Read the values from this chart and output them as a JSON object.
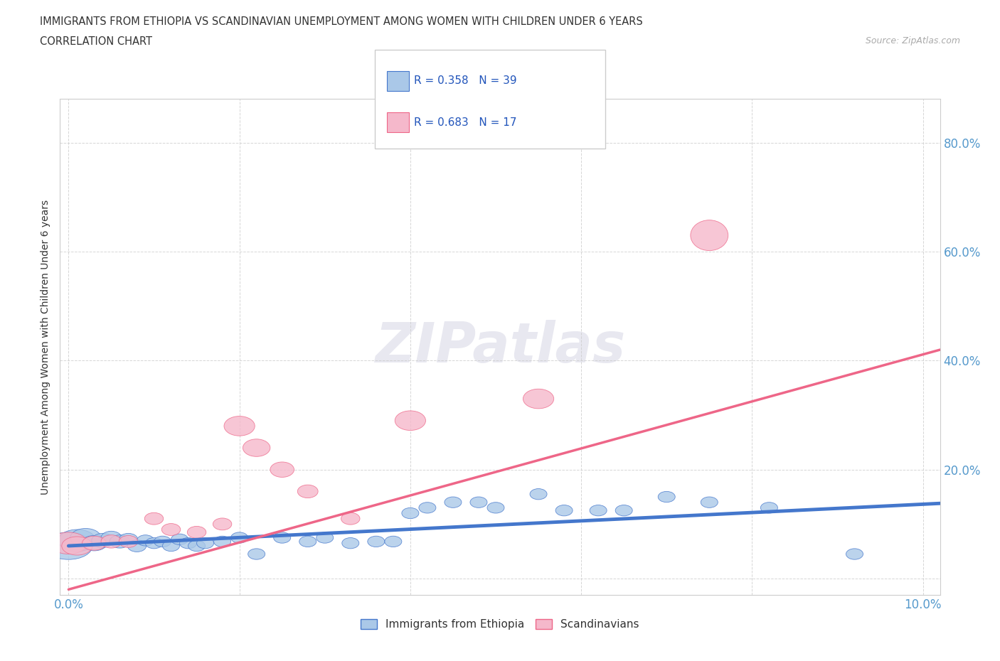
{
  "title": "IMMIGRANTS FROM ETHIOPIA VS SCANDINAVIAN UNEMPLOYMENT AMONG WOMEN WITH CHILDREN UNDER 6 YEARS",
  "subtitle": "CORRELATION CHART",
  "source": "Source: ZipAtlas.com",
  "ylabel": "Unemployment Among Women with Children Under 6 years",
  "xlim": [
    -0.001,
    0.102
  ],
  "ylim": [
    -0.03,
    0.88
  ],
  "xticks": [
    0.0,
    0.02,
    0.04,
    0.06,
    0.08,
    0.1
  ],
  "yticks": [
    0.0,
    0.2,
    0.4,
    0.6,
    0.8
  ],
  "title_color": "#333333",
  "subtitle_color": "#333333",
  "source_color": "#aaaaaa",
  "background_color": "#ffffff",
  "grid_color": "#cccccc",
  "ethiopia_color": "#aac8e8",
  "scandinavian_color": "#f5b8cb",
  "ethiopia_line_color": "#4477cc",
  "scandinavian_line_color": "#ee6688",
  "axis_label_color": "#5599cc",
  "ethiopia_scatter_x": [
    0.0,
    0.001,
    0.002,
    0.003,
    0.004,
    0.005,
    0.006,
    0.007,
    0.008,
    0.009,
    0.01,
    0.011,
    0.012,
    0.013,
    0.014,
    0.015,
    0.016,
    0.018,
    0.02,
    0.022,
    0.025,
    0.028,
    0.03,
    0.033,
    0.036,
    0.038,
    0.04,
    0.042,
    0.045,
    0.048,
    0.05,
    0.055,
    0.058,
    0.062,
    0.065,
    0.07,
    0.075,
    0.082,
    0.092
  ],
  "ethiopia_scatter_y": [
    0.06,
    0.07,
    0.075,
    0.065,
    0.07,
    0.075,
    0.068,
    0.072,
    0.06,
    0.07,
    0.065,
    0.068,
    0.06,
    0.072,
    0.065,
    0.06,
    0.065,
    0.068,
    0.075,
    0.045,
    0.075,
    0.068,
    0.075,
    0.065,
    0.068,
    0.068,
    0.12,
    0.13,
    0.14,
    0.14,
    0.13,
    0.155,
    0.125,
    0.125,
    0.125,
    0.15,
    0.14,
    0.13,
    0.045
  ],
  "ethiopia_scatter_sx": [
    0.0028,
    0.0022,
    0.0018,
    0.0015,
    0.0013,
    0.0012,
    0.0012,
    0.0011,
    0.0011,
    0.001,
    0.001,
    0.001,
    0.001,
    0.001,
    0.001,
    0.001,
    0.001,
    0.001,
    0.001,
    0.001,
    0.001,
    0.001,
    0.001,
    0.001,
    0.001,
    0.001,
    0.001,
    0.001,
    0.001,
    0.001,
    0.001,
    0.001,
    0.001,
    0.001,
    0.001,
    0.001,
    0.001,
    0.001,
    0.001
  ],
  "ethiopia_scatter_sy": [
    0.025,
    0.02,
    0.017,
    0.014,
    0.013,
    0.012,
    0.012,
    0.011,
    0.011,
    0.01,
    0.01,
    0.01,
    0.01,
    0.01,
    0.01,
    0.01,
    0.01,
    0.01,
    0.01,
    0.01,
    0.01,
    0.01,
    0.01,
    0.01,
    0.01,
    0.01,
    0.01,
    0.01,
    0.01,
    0.01,
    0.01,
    0.01,
    0.01,
    0.01,
    0.01,
    0.01,
    0.01,
    0.01,
    0.01
  ],
  "scandinavian_scatter_x": [
    0.0,
    0.001,
    0.003,
    0.005,
    0.007,
    0.01,
    0.012,
    0.015,
    0.018,
    0.02,
    0.022,
    0.025,
    0.028,
    0.033,
    0.04,
    0.055,
    0.075
  ],
  "scandinavian_scatter_y": [
    0.065,
    0.06,
    0.065,
    0.068,
    0.068,
    0.11,
    0.09,
    0.085,
    0.1,
    0.28,
    0.24,
    0.2,
    0.16,
    0.11,
    0.29,
    0.33,
    0.63
  ],
  "scandinavian_scatter_sx": [
    0.0022,
    0.0018,
    0.0014,
    0.0012,
    0.0011,
    0.0011,
    0.0011,
    0.0011,
    0.0011,
    0.0018,
    0.0016,
    0.0014,
    0.0012,
    0.0011,
    0.0018,
    0.0018,
    0.0022
  ],
  "scandinavian_scatter_sy": [
    0.02,
    0.017,
    0.013,
    0.012,
    0.011,
    0.011,
    0.011,
    0.011,
    0.011,
    0.018,
    0.016,
    0.014,
    0.012,
    0.011,
    0.018,
    0.018,
    0.028
  ],
  "ethiopia_line_x": [
    0.0,
    0.102
  ],
  "ethiopia_line_y": [
    0.06,
    0.138
  ],
  "scandinavian_line_x": [
    0.0,
    0.102
  ],
  "scandinavian_line_y": [
    -0.02,
    0.42
  ],
  "legend_r1_text": "R = 0.358",
  "legend_n1_text": "N = 39",
  "legend_r2_text": "R = 0.683",
  "legend_n2_text": "N = 17"
}
